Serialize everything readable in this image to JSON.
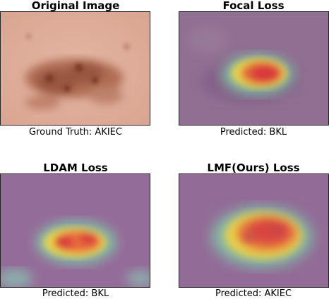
{
  "panels": [
    {
      "title": "Original Image",
      "caption": "Ground Truth: AKIEC",
      "kind": "original"
    },
    {
      "title": "Focal Loss",
      "caption": "Predicted: BKL",
      "kind": "heatmap"
    },
    {
      "title": "LDAM Loss",
      "caption": "Predicted: BKL",
      "kind": "heatmap"
    },
    {
      "title": "LMF(Ours) Loss",
      "caption": "Predicted: AKIEC",
      "kind": "heatmap"
    }
  ]
}
